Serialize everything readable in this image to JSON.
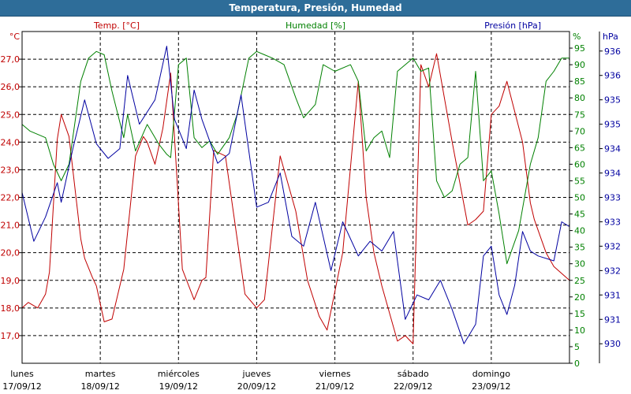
{
  "window": {
    "title": "Temperatura, Presión, Humedad"
  },
  "chart_data": {
    "type": "line",
    "title": "Temperatura, Presión, Humedad",
    "x_range": [
      0,
      7
    ],
    "x_ticks": [
      {
        "day": "lunes",
        "date": "17/09/12"
      },
      {
        "day": "martes",
        "date": "18/09/12"
      },
      {
        "day": "miércoles",
        "date": "19/09/12"
      },
      {
        "day": "jueves",
        "date": "20/09/12"
      },
      {
        "day": "viernes",
        "date": "21/09/12"
      },
      {
        "day": "sábado",
        "date": "22/09/12"
      },
      {
        "day": "domingo",
        "date": "23/09/12"
      }
    ],
    "axes": {
      "temperature": {
        "name": "Temp. [°C]",
        "unit": "°C",
        "color": "#c00000",
        "range": [
          16.0,
          28.0
        ],
        "ticks": [
          "17,0",
          "18,0",
          "19,0",
          "20,0",
          "21,0",
          "22,0",
          "23,0",
          "24,0",
          "25,0",
          "26,0",
          "27,0"
        ],
        "tick_values": [
          17,
          18,
          19,
          20,
          21,
          22,
          23,
          24,
          25,
          26,
          27
        ]
      },
      "humidity": {
        "name": "Humedad [%]",
        "unit": "%",
        "color": "#008000",
        "range": [
          0,
          100
        ],
        "ticks": [
          "0",
          "5",
          "10",
          "15",
          "20",
          "25",
          "30",
          "35",
          "40",
          "45",
          "50",
          "55",
          "60",
          "65",
          "70",
          "75",
          "80",
          "85",
          "90",
          "95"
        ],
        "tick_values": [
          0,
          5,
          10,
          15,
          20,
          25,
          30,
          35,
          40,
          45,
          50,
          55,
          60,
          65,
          70,
          75,
          80,
          85,
          90,
          95
        ]
      },
      "pressure": {
        "name": "Presión [hPa]",
        "unit": "hPa",
        "color": "#0000a0",
        "range": [
          929.6,
          936.4
        ],
        "ticks": [
          "930",
          "931",
          "931",
          "932",
          "932",
          "933",
          "933",
          "934",
          "934",
          "935",
          "935",
          "936",
          "936"
        ],
        "tick_values": [
          930.0,
          930.5,
          931.0,
          931.5,
          932.0,
          932.5,
          933.0,
          933.5,
          934.0,
          934.5,
          935.0,
          935.5,
          936.0
        ]
      }
    },
    "series": [
      {
        "name": "Temp. [°C]",
        "axis": "temperature",
        "color": "#c00000",
        "x": [
          0,
          0.08,
          0.2,
          0.3,
          0.35,
          0.45,
          0.5,
          0.6,
          0.75,
          0.8,
          0.9,
          0.95,
          1.05,
          1.15,
          1.3,
          1.45,
          1.55,
          1.6,
          1.7,
          1.8,
          1.9,
          2.05,
          2.2,
          2.3,
          2.35,
          2.45,
          2.6,
          2.7,
          2.85,
          3.0,
          3.1,
          3.3,
          3.5,
          3.65,
          3.8,
          3.9,
          4.1,
          4.3,
          4.4,
          4.5,
          4.6,
          4.8,
          4.9,
          5.0,
          5.1,
          5.2,
          5.3,
          5.5,
          5.7,
          5.8,
          5.9,
          6.0,
          6.1,
          6.2,
          6.4,
          6.5,
          6.55,
          6.7,
          6.8,
          7.0
        ],
        "values": [
          18.0,
          18.2,
          18.0,
          18.5,
          19.3,
          24.1,
          25.0,
          24.2,
          20.5,
          19.8,
          19.1,
          18.8,
          17.5,
          17.6,
          19.4,
          23.5,
          24.2,
          24.0,
          23.2,
          24.5,
          26.5,
          19.4,
          18.3,
          19.0,
          19.1,
          23.7,
          23.5,
          21.5,
          18.5,
          18.0,
          18.3,
          23.5,
          21.5,
          19.0,
          17.7,
          17.2,
          20.0,
          26.2,
          22.0,
          20.0,
          18.8,
          16.8,
          17.0,
          16.7,
          26.8,
          26.0,
          27.2,
          24.0,
          21.0,
          21.2,
          21.5,
          25.0,
          25.3,
          26.2,
          24.0,
          21.8,
          21.2,
          20.0,
          19.5,
          19.0
        ]
      },
      {
        "name": "Humedad [%]",
        "axis": "humidity",
        "color": "#008000",
        "x": [
          0,
          0.1,
          0.3,
          0.4,
          0.5,
          0.6,
          0.75,
          0.85,
          0.95,
          1.05,
          1.15,
          1.3,
          1.35,
          1.45,
          1.6,
          1.65,
          1.75,
          1.85,
          1.9,
          2.0,
          2.1,
          2.2,
          2.3,
          2.4,
          2.5,
          2.65,
          2.75,
          2.9,
          3.0,
          3.1,
          3.2,
          3.35,
          3.5,
          3.6,
          3.75,
          3.85,
          4.0,
          4.2,
          4.3,
          4.4,
          4.5,
          4.6,
          4.7,
          4.8,
          4.9,
          5.0,
          5.1,
          5.2,
          5.3,
          5.4,
          5.5,
          5.6,
          5.7,
          5.8,
          5.9,
          6.0,
          6.1,
          6.2,
          6.35,
          6.5,
          6.6,
          6.7,
          6.8,
          6.9,
          7.0
        ],
        "values": [
          72,
          70,
          68,
          60,
          55,
          60,
          85,
          92,
          94,
          93,
          82,
          68,
          75,
          64,
          72,
          70,
          66,
          63,
          62,
          90,
          92,
          68,
          65,
          67,
          63,
          68,
          75,
          92,
          94,
          93,
          92,
          90,
          80,
          74,
          78,
          90,
          88,
          90,
          85,
          64,
          68,
          70,
          62,
          88,
          90,
          92,
          88,
          89,
          55,
          50,
          52,
          60,
          62,
          88,
          55,
          58,
          45,
          30,
          40,
          60,
          68,
          85,
          88,
          92,
          92
        ]
      },
      {
        "name": "Presión [hPa]",
        "axis": "pressure",
        "color": "#0000a0",
        "x": [
          0,
          0.15,
          0.3,
          0.45,
          0.5,
          0.65,
          0.8,
          0.95,
          1.1,
          1.25,
          1.35,
          1.5,
          1.7,
          1.85,
          1.95,
          2.1,
          2.2,
          2.3,
          2.5,
          2.65,
          2.8,
          3.0,
          3.15,
          3.3,
          3.45,
          3.6,
          3.75,
          3.95,
          4.1,
          4.3,
          4.45,
          4.6,
          4.75,
          4.9,
          5.05,
          5.2,
          5.35,
          5.5,
          5.65,
          5.8,
          5.9,
          6.0,
          6.1,
          6.2,
          6.3,
          6.4,
          6.5,
          6.6,
          6.8,
          6.9,
          7.0
        ],
        "values": [
          933.1,
          932.1,
          932.6,
          933.3,
          932.9,
          934.0,
          935.0,
          934.1,
          933.8,
          934.0,
          935.5,
          934.5,
          935.0,
          936.1,
          934.6,
          934.0,
          935.2,
          934.6,
          933.7,
          933.9,
          935.1,
          932.8,
          932.9,
          933.5,
          932.2,
          932.0,
          932.9,
          931.5,
          932.5,
          931.8,
          932.1,
          931.9,
          932.3,
          930.5,
          931.0,
          930.9,
          931.3,
          930.7,
          930.0,
          930.4,
          931.8,
          932.0,
          931.0,
          930.6,
          931.2,
          932.3,
          931.9,
          931.8,
          931.7,
          932.5,
          932.4
        ]
      }
    ]
  }
}
